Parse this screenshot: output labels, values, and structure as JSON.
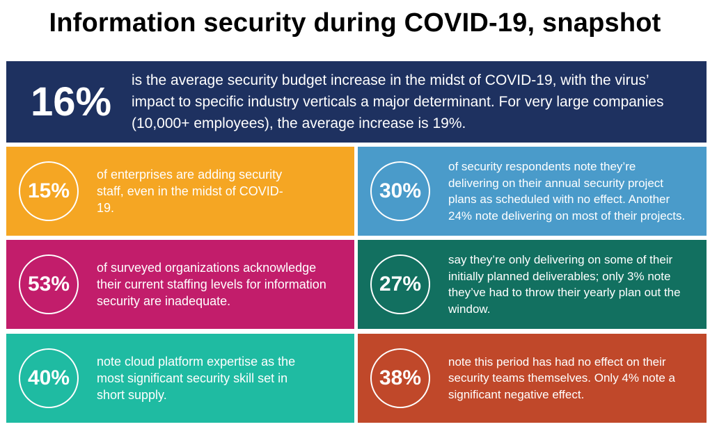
{
  "title": "Information security during COVID-19, snapshot",
  "colors": {
    "navy": "#1e3160",
    "orange": "#f5a623",
    "blue": "#4a9bca",
    "magenta": "#c21d6b",
    "dark_teal": "#127060",
    "teal": "#1fbba2",
    "rust": "#c0482a"
  },
  "hero": {
    "stat": "16%",
    "text": "is the average security budget increase in the midst of COVID-19, with the virus’ impact to specific industry verticals a major determinant. For very large companies (10,000+ employees), the average increase is 19%."
  },
  "cards": [
    {
      "stat": "15%",
      "text": "of enterprises are adding security staff, even in the midst of COVID-19."
    },
    {
      "stat": "30%",
      "text": "of security respondents note they’re delivering on their annual security project plans as scheduled with no effect. Another 24% note delivering on most of their projects."
    },
    {
      "stat": "53%",
      "text": "of surveyed organizations acknowledge their current staffing levels for information security are inadequate."
    },
    {
      "stat": "27%",
      "text": "say they’re only delivering on some of their initially planned deliverables; only 3% note they’ve had to throw their yearly plan out the window."
    },
    {
      "stat": "40%",
      "text": "note cloud platform expertise as the most significant security skill set in short supply."
    },
    {
      "stat": "38%",
      "text": "note this period has had no effect on their security teams themselves. Only 4% note a significant negative effect."
    }
  ]
}
